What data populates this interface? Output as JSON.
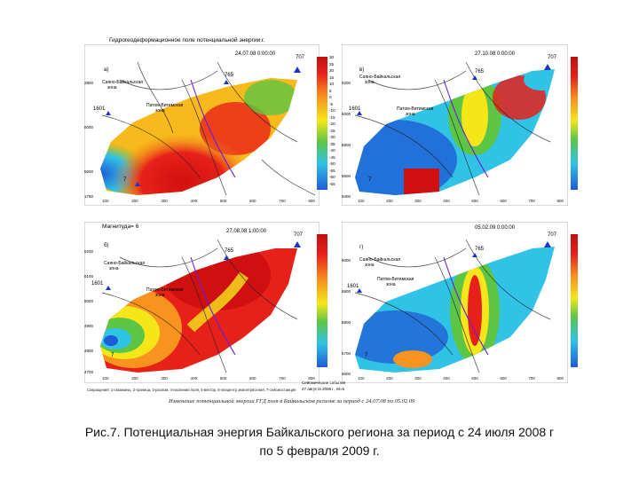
{
  "figure": {
    "header": "Гидрогеодеформационное поле потенциальной энергии г.",
    "panels": [
      {
        "id": "a",
        "letter": "а)",
        "date": "24.07.08 0:00:00",
        "scale_title": "Отн.ед.\nпо",
        "ticks": [
          "30",
          "25",
          "20",
          "15",
          "10",
          "5",
          "0",
          "-5",
          "-10",
          "-15",
          "-20",
          "-25",
          "-30",
          "-35",
          "-40",
          "-45",
          "-50",
          "-55",
          "-60",
          "-65"
        ],
        "yticks": [
          "2800",
          "5000",
          "5500",
          "1750"
        ],
        "xticks": [
          "100",
          "200",
          "300",
          "400",
          "500",
          "600",
          "700",
          "800"
        ],
        "stations": {
          "s707": "707",
          "s765": "765",
          "s1601": "1601",
          "s7": "7"
        },
        "labels": {
          "l1": "Саяно-Байкальская",
          "l1b": "зона",
          "l2": "Патом-Витимская",
          "l2b": "зона"
        }
      },
      {
        "id": "v",
        "letter": "в)",
        "date": "27.10.08 0:00:00",
        "scale_title": "Отн.ед.\nпо",
        "ticks": [
          "190",
          "175",
          "160",
          "145",
          "130",
          "115",
          "100",
          "85",
          "70",
          "55",
          "40",
          "25",
          "10",
          "-5",
          "-20",
          "-35",
          "-50",
          "-65",
          "-70"
        ],
        "yticks": [
          "6200",
          "6000",
          "5800",
          "5600",
          "5400"
        ],
        "xticks": [
          "100",
          "200",
          "300",
          "400",
          "500",
          "600",
          "700",
          "800"
        ],
        "stations": {
          "s707": "707",
          "s765": "765",
          "s1601": "1601",
          "s7": "7"
        },
        "labels": {
          "l1": "Саяно-Байкальская",
          "l1b": "зона",
          "l2": "Патом-Витимская",
          "l2b": "зона"
        }
      },
      {
        "id": "b",
        "letter": "б)",
        "date": "27.08.08 1:00:00",
        "scale_title": "Отн.ед.\nпо",
        "magnitude": "Магнитуда= 6",
        "ticks": [
          "60",
          "55",
          "50",
          "45",
          "40",
          "35",
          "30",
          "25",
          "20",
          "15",
          "10",
          "5",
          "0",
          "-5",
          "-10",
          "-15",
          "-20",
          "-25",
          "-30",
          "-35"
        ],
        "yticks": [
          "5200",
          "5100",
          "5000",
          "4900",
          "4800",
          "4700"
        ],
        "xticks": [
          "100",
          "200",
          "300",
          "400",
          "500",
          "600",
          "700",
          "800"
        ],
        "stations": {
          "s707": "707",
          "s765": "765",
          "s1601": "1601",
          "s7": "7"
        },
        "labels": {
          "l1": "Саяно-Байкальская",
          "l1b": "зона",
          "l2": "Патом-Витимская",
          "l2b": "зона"
        }
      },
      {
        "id": "g",
        "letter": "г)",
        "date": "05.02.09 0:00:00",
        "scale_title": "Отн.ед.\nпо",
        "ticks": [
          "160",
          "145",
          "130",
          "115",
          "100",
          "85",
          "70",
          "55",
          "40",
          "25",
          "10",
          "-5",
          "-20",
          "-35",
          "-50",
          "-65",
          "-70"
        ],
        "yticks": [
          "6000",
          "5900",
          "5800",
          "5700",
          "5600"
        ],
        "xticks": [
          "100",
          "200",
          "300",
          "400",
          "500",
          "600",
          "700",
          "800"
        ],
        "stations": {
          "s707": "707",
          "s765": "765",
          "s1601": "1601",
          "s7": "7"
        },
        "labels": {
          "l1": "Саяно-Байкальская",
          "l1b": "зона",
          "l2": "Патом-Витимская",
          "l2b": "зона"
        }
      }
    ],
    "legend_line": "Сокращения: 1-скважины, 2-граница, 3-разлом, 4-изолинии поля, 5-вектор, 6-эпицентр землетрясения, 7-сейсмостанция",
    "legend_side": "Сейсмические события\n27 августа 2008 г., M=6",
    "bottom_note": "Изменение потенциальной энергии ГГД поля в Байкальском регионе за период с 24.07.08 по 05.02.09",
    "colors": {
      "red": "#e8201a",
      "orange": "#f7931e",
      "yellow": "#f5e61a",
      "green": "#5cc545",
      "cyan": "#31c3e6",
      "blue": "#1f5bd6",
      "darkblue": "#0a2a9a"
    }
  },
  "caption": {
    "line1": "Рис.7. Потенциальная энергия Байкальского региона за период с 24 июля 2008 г",
    "line2": "по 5 февраля 2009 г."
  }
}
